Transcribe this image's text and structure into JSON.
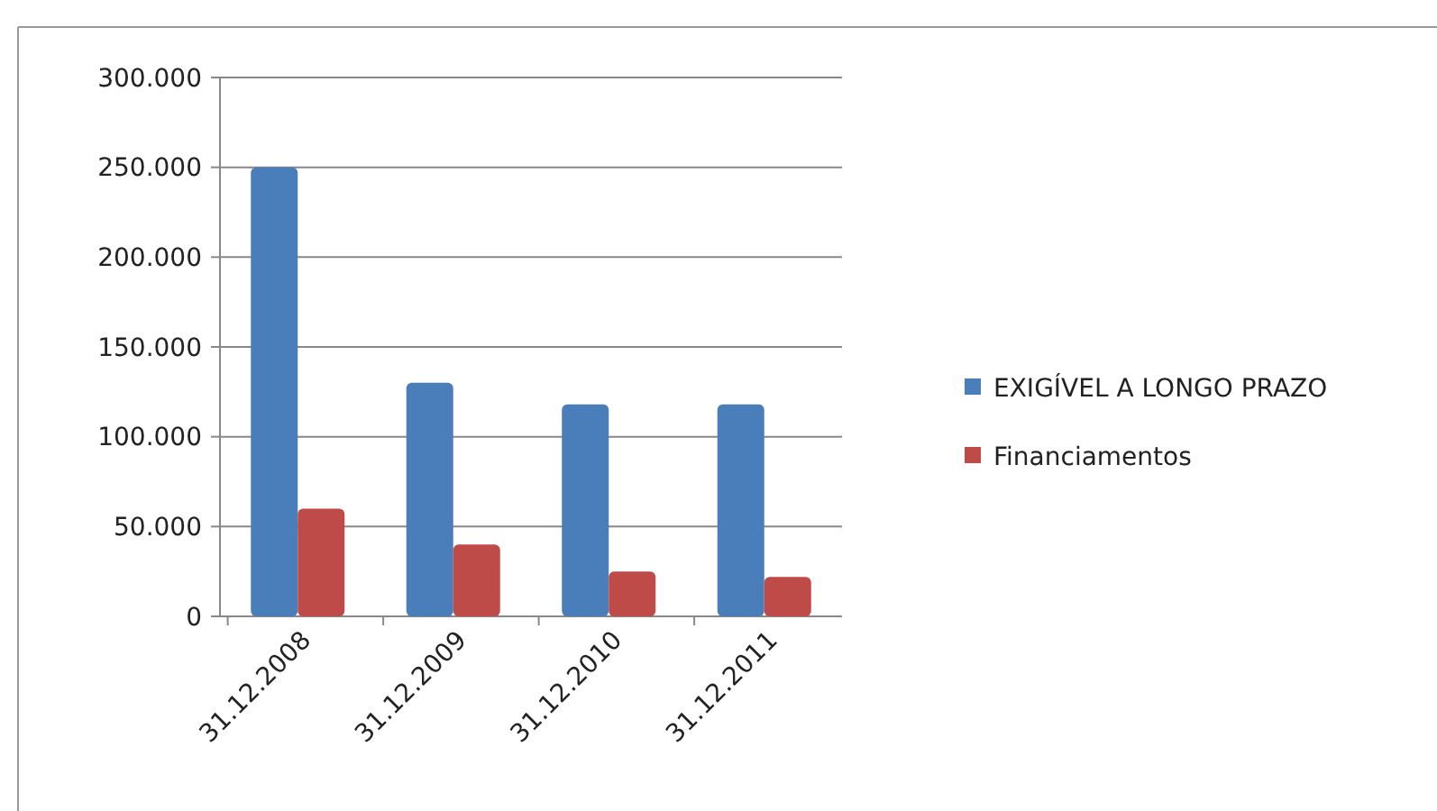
{
  "chart_data": {
    "type": "bar",
    "categories": [
      "31.12.2008",
      "31.12.2009",
      "31.12.2010",
      "31.12.2011"
    ],
    "series": [
      {
        "name": "EXIGÍVEL A LONGO PRAZO",
        "color": "#4a7ebb",
        "values": [
          250000,
          130000,
          118000,
          118000
        ]
      },
      {
        "name": "Financiamentos",
        "color": "#be4b48",
        "values": [
          60000,
          40000,
          25000,
          22000
        ]
      }
    ],
    "ylim": [
      0,
      300000
    ],
    "yticks": [
      {
        "value": 0,
        "label": "0"
      },
      {
        "value": 50000,
        "label": "50.000"
      },
      {
        "value": 100000,
        "label": "100.000"
      },
      {
        "value": 150000,
        "label": "150.000"
      },
      {
        "value": 200000,
        "label": "200.000"
      },
      {
        "value": 250000,
        "label": "250.000"
      },
      {
        "value": 300000,
        "label": "300.000"
      }
    ],
    "grid": "y",
    "legend": "right"
  }
}
